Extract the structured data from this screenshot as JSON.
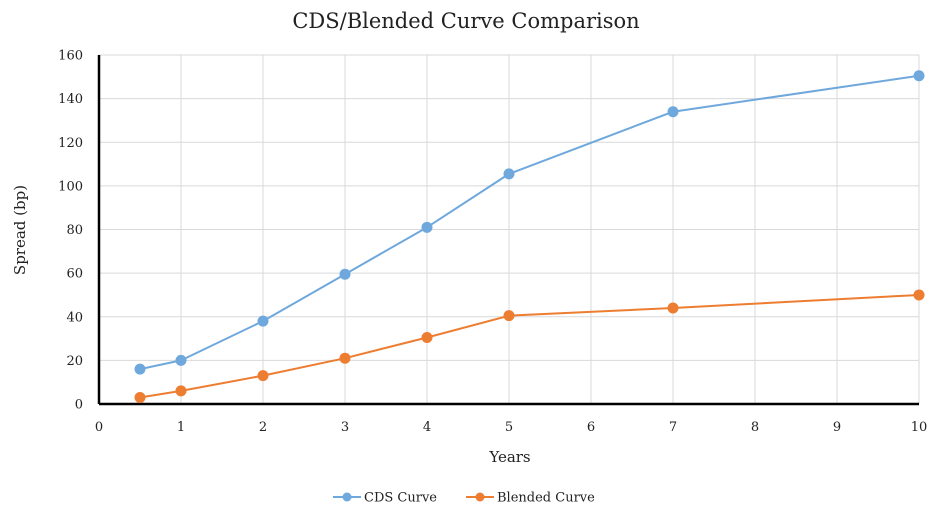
{
  "chart_data": {
    "type": "line",
    "title": "CDS/Blended Curve Comparison",
    "xlabel": "Years",
    "ylabel": "Spread (bp)",
    "xlim": [
      0,
      10
    ],
    "ylim": [
      0,
      160
    ],
    "x_ticks": [
      "0",
      "1",
      "2",
      "3",
      "4",
      "5",
      "6",
      "7",
      "8",
      "9",
      "10"
    ],
    "y_ticks": [
      "0",
      "20",
      "40",
      "60",
      "80",
      "100",
      "120",
      "140",
      "160"
    ],
    "grid": true,
    "legend_position": "bottom",
    "series": [
      {
        "name": "CDS Curve",
        "color": "#6fa8dc",
        "x": [
          0.5,
          1,
          2,
          3,
          4,
          5,
          7,
          10
        ],
        "y": [
          16,
          20,
          38,
          59.5,
          81,
          105.5,
          134,
          150.5
        ]
      },
      {
        "name": "Blended Curve",
        "color": "#ed7d31",
        "x": [
          0.5,
          1,
          2,
          3,
          4,
          5,
          7,
          10
        ],
        "y": [
          3,
          6,
          13,
          21,
          30.5,
          40.5,
          44,
          50
        ]
      }
    ]
  }
}
